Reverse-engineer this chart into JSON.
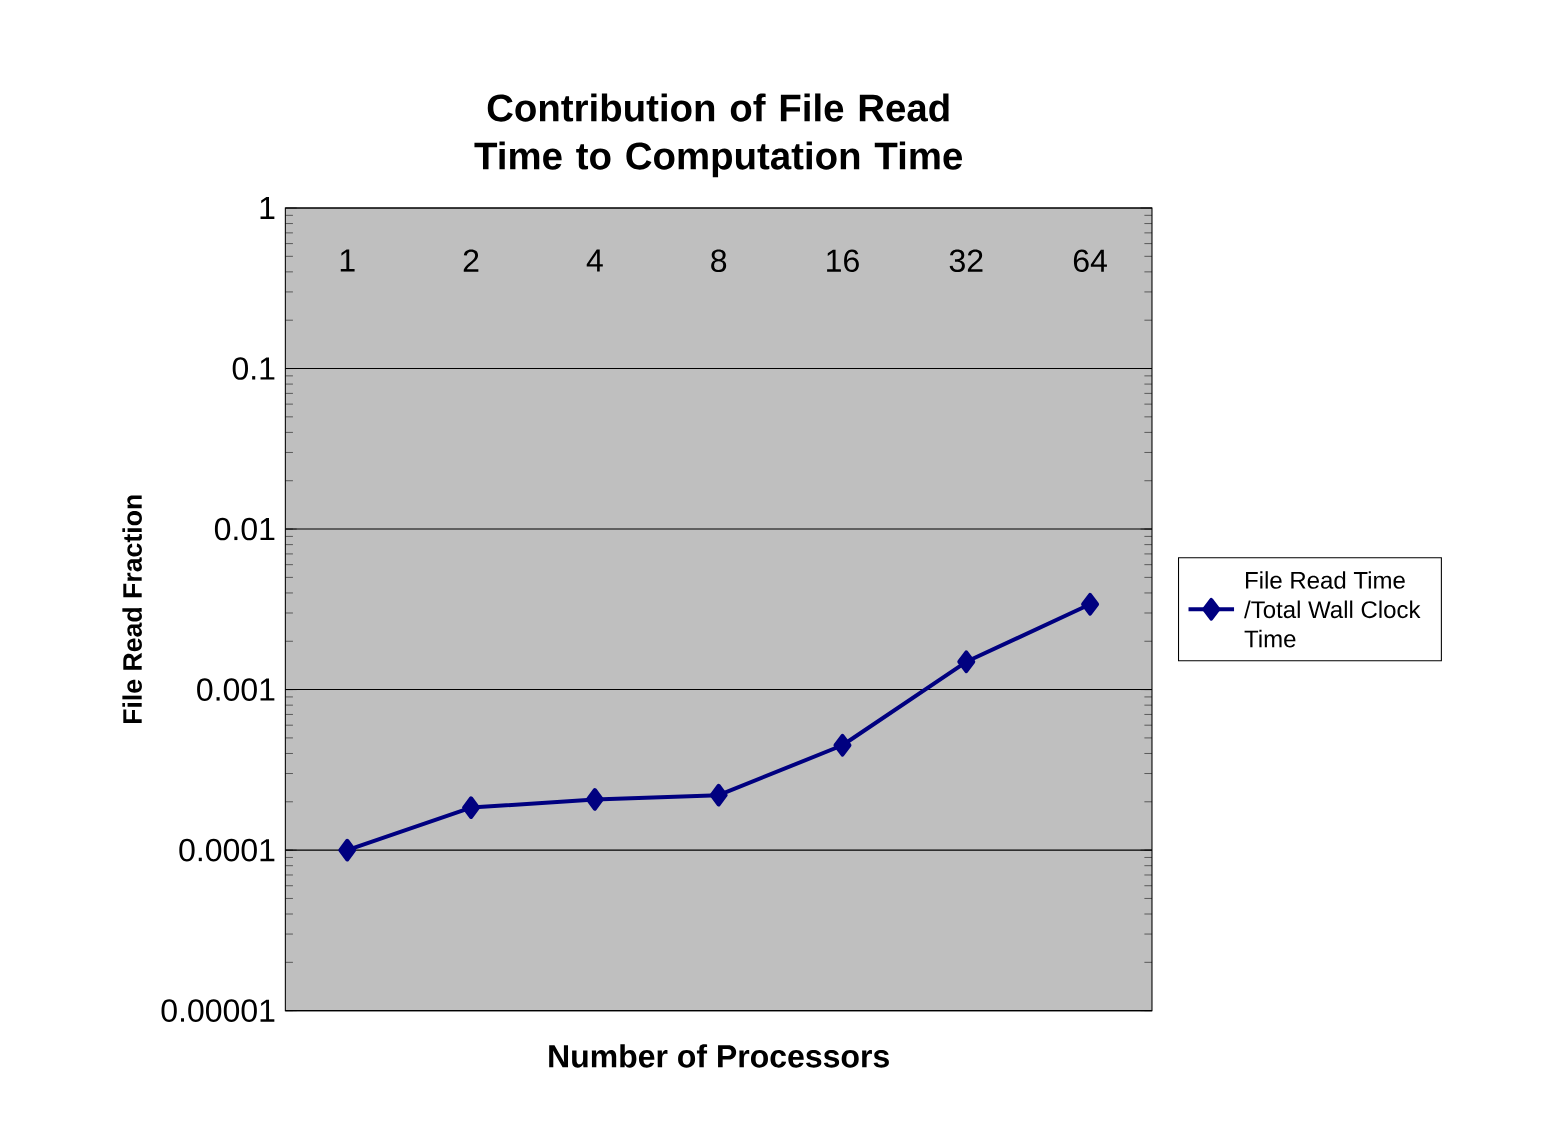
{
  "chart_data": {
    "type": "line",
    "title": "Contribution of File Read Time to Computation Time",
    "xlabel": "Number of Processors",
    "ylabel": "File Read Fraction",
    "categories": [
      "1",
      "2",
      "4",
      "8",
      "16",
      "32",
      "64"
    ],
    "series": [
      {
        "name": "File Read Time /Total Wall Clock Time",
        "color": "#000080",
        "values": [
          0.0001,
          0.000184,
          0.000207,
          0.00022,
          0.00045,
          0.00149,
          0.0034
        ]
      }
    ],
    "ylim": [
      1e-05,
      1
    ],
    "yticks": [
      {
        "value": 1e-05,
        "label": "0.00001"
      },
      0.0001,
      0.001,
      0.01,
      0.1,
      1
    ],
    "log": "y",
    "grid": "y",
    "legend": "right",
    "marker": "diamond",
    "line_style": "solid"
  }
}
